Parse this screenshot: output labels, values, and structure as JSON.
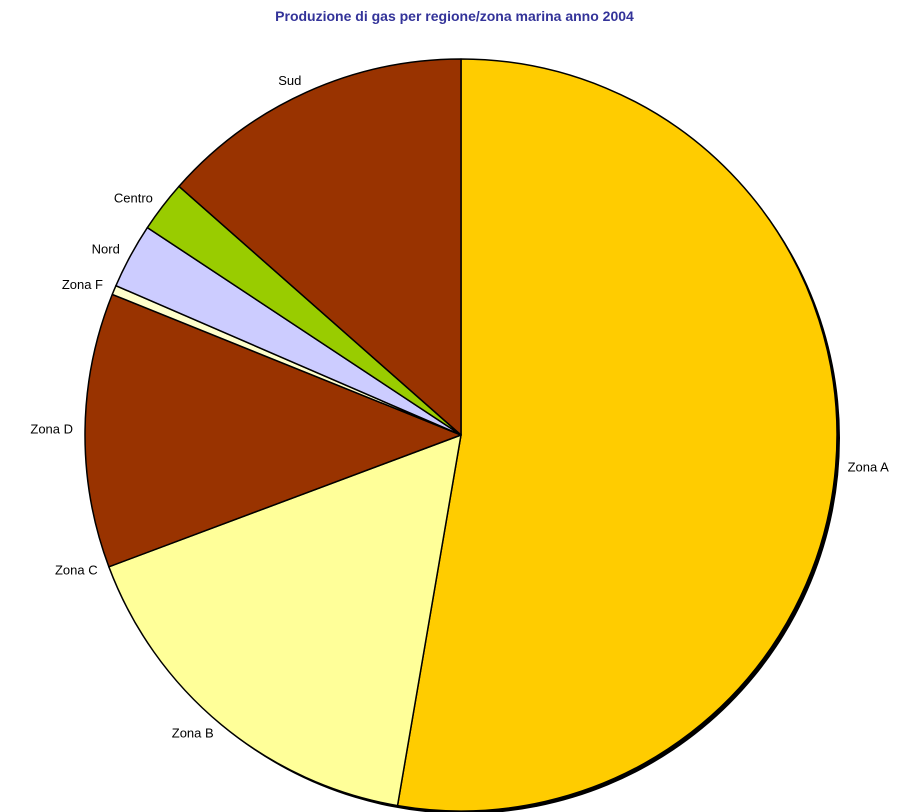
{
  "chart_data": {
    "type": "pie",
    "title": "Produzione di gas per regione/zona marina anno 2004",
    "start_label": "Zona A",
    "slices": [
      {
        "label": "Zona A",
        "value": 52.7,
        "color": "#FFCC00"
      },
      {
        "label": "Zona B",
        "value": 16.6,
        "color": "#FFFF99"
      },
      {
        "label": "Zona C",
        "value": 0.0,
        "color": "#FFFFFF"
      },
      {
        "label": "Zona D",
        "value": 11.8,
        "color": "#993300"
      },
      {
        "label": "Zona F",
        "value": 0.4,
        "color": "#FFFFCC"
      },
      {
        "label": "Nord",
        "value": 2.8,
        "color": "#CCCCFF"
      },
      {
        "label": "Centro",
        "value": 2.2,
        "color": "#99CC00"
      },
      {
        "label": "Sud",
        "value": 13.5,
        "color": "#993300"
      }
    ],
    "legend": "none"
  }
}
